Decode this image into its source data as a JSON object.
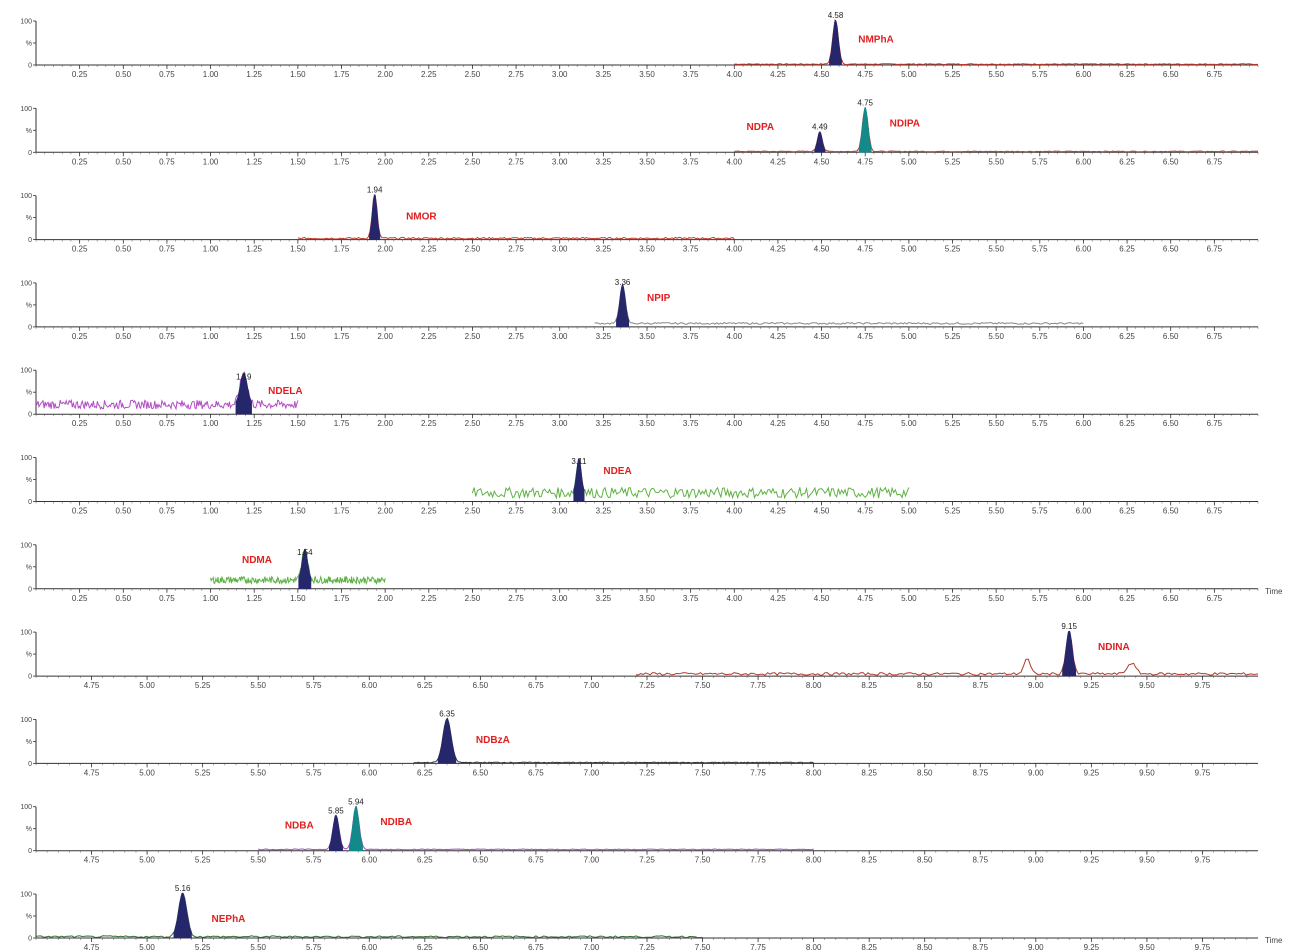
{
  "chart_data": {
    "type": "line",
    "y_ticks": [
      "100",
      "%",
      "0"
    ],
    "time_label": "Time",
    "panels": [
      {
        "xlim": [
          0,
          7.0
        ],
        "ticks": [
          "0.25",
          "0.50",
          "0.75",
          "1.00",
          "1.25",
          "1.50",
          "1.75",
          "2.00",
          "2.25",
          "2.50",
          "2.75",
          "3.00",
          "3.25",
          "3.50",
          "3.75",
          "4.00",
          "4.25",
          "4.50",
          "4.75",
          "5.00",
          "5.25",
          "5.50",
          "5.75",
          "6.00",
          "6.25",
          "6.50",
          "6.75"
        ],
        "trace_range": [
          4.0,
          7.0
        ],
        "trace_color": "#c0392b",
        "baseline": 2,
        "noise": 1,
        "show_time": false,
        "peaks": [
          {
            "rt": 4.58,
            "rt_label": "4.58",
            "height": 100,
            "width": 0.035,
            "color": "#26276b",
            "name": "NMPhA",
            "name_offset": 0.13,
            "name_height": 60
          }
        ]
      },
      {
        "xlim": [
          0,
          7.0
        ],
        "ticks": [
          "0.25",
          "0.50",
          "0.75",
          "1.00",
          "1.25",
          "1.50",
          "1.75",
          "2.00",
          "2.25",
          "2.50",
          "2.75",
          "3.00",
          "3.25",
          "3.50",
          "3.75",
          "4.00",
          "4.25",
          "4.50",
          "4.75",
          "5.00",
          "5.25",
          "5.50",
          "5.75",
          "6.00",
          "6.25",
          "6.50",
          "6.75"
        ],
        "trace_range": [
          4.0,
          7.0
        ],
        "trace_color": "#c0392b",
        "baseline": 2,
        "noise": 1,
        "show_time": false,
        "peaks": [
          {
            "rt": 4.49,
            "rt_label": "4.49",
            "height": 45,
            "width": 0.03,
            "color": "#26276b",
            "name": "NDPA",
            "name_offset": -0.42,
            "name_height": 60
          },
          {
            "rt": 4.75,
            "rt_label": "4.75",
            "height": 100,
            "width": 0.035,
            "color": "#138a8a",
            "name": "NDIPA",
            "name_offset": 0.14,
            "name_height": 68
          }
        ]
      },
      {
        "xlim": [
          0,
          7.0
        ],
        "ticks": [
          "0.25",
          "0.50",
          "0.75",
          "1.00",
          "1.25",
          "1.50",
          "1.75",
          "2.00",
          "2.25",
          "2.50",
          "2.75",
          "3.00",
          "3.25",
          "3.50",
          "3.75",
          "4.00",
          "4.25",
          "4.50",
          "4.75",
          "5.00",
          "5.25",
          "5.50",
          "5.75",
          "6.00",
          "6.25",
          "6.50",
          "6.75"
        ],
        "trace_range": [
          1.5,
          4.0
        ],
        "trace_color": "#c0392b",
        "baseline": 3,
        "noise": 2,
        "show_time": false,
        "peaks": [
          {
            "rt": 1.94,
            "rt_label": "1.94",
            "height": 100,
            "width": 0.03,
            "color": "#26276b",
            "name": "NMOR",
            "name_offset": 0.18,
            "name_height": 55
          }
        ]
      },
      {
        "xlim": [
          0,
          7.0
        ],
        "ticks": [
          "0.25",
          "0.50",
          "0.75",
          "1.00",
          "1.25",
          "1.50",
          "1.75",
          "2.00",
          "2.25",
          "2.50",
          "2.75",
          "3.00",
          "3.25",
          "3.50",
          "3.75",
          "4.00",
          "4.25",
          "4.50",
          "4.75",
          "5.00",
          "5.25",
          "5.50",
          "5.75",
          "6.00",
          "6.25",
          "6.50",
          "6.75"
        ],
        "trace_range": [
          3.2,
          6.0
        ],
        "trace_color": "#888888",
        "baseline": 8,
        "noise": 2,
        "show_time": false,
        "peaks": [
          {
            "rt": 3.36,
            "rt_label": "3.36",
            "height": 88,
            "width": 0.035,
            "color": "#26276b",
            "name": "NPIP",
            "name_offset": 0.14,
            "name_height": 68
          }
        ]
      },
      {
        "xlim": [
          0,
          7.0
        ],
        "ticks": [
          "0.25",
          "0.50",
          "0.75",
          "1.00",
          "1.25",
          "1.50",
          "1.75",
          "2.00",
          "2.25",
          "2.50",
          "2.75",
          "3.00",
          "3.25",
          "3.50",
          "3.75",
          "4.00",
          "4.25",
          "4.50",
          "4.75",
          "5.00",
          "5.25",
          "5.50",
          "5.75",
          "6.00",
          "6.25",
          "6.50",
          "6.75"
        ],
        "trace_range": [
          0.0,
          1.5
        ],
        "trace_color": "#b24ec4",
        "baseline": 22,
        "noise": 10,
        "show_time": false,
        "peaks": [
          {
            "rt": 1.19,
            "rt_label": "1.19",
            "height": 72,
            "width": 0.045,
            "color": "#26276b",
            "name": "NDELA",
            "name_offset": 0.14,
            "name_height": 55
          }
        ]
      },
      {
        "xlim": [
          0,
          7.0
        ],
        "ticks": [
          "0.25",
          "0.50",
          "0.75",
          "1.00",
          "1.25",
          "1.50",
          "1.75",
          "2.00",
          "2.25",
          "2.50",
          "2.75",
          "3.00",
          "3.25",
          "3.50",
          "3.75",
          "4.00",
          "4.25",
          "4.50",
          "4.75",
          "5.00",
          "5.25",
          "5.50",
          "5.75",
          "6.00",
          "6.25",
          "6.50",
          "6.75"
        ],
        "trace_range": [
          2.5,
          5.0
        ],
        "trace_color": "#5fb244",
        "baseline": 20,
        "noise": 12,
        "show_time": false,
        "peaks": [
          {
            "rt": 3.11,
            "rt_label": "3.11",
            "height": 78,
            "width": 0.03,
            "color": "#26276b",
            "name": "NDEA",
            "name_offset": 0.14,
            "name_height": 72
          }
        ]
      },
      {
        "xlim": [
          0,
          7.0
        ],
        "ticks": [
          "0.25",
          "0.50",
          "0.75",
          "1.00",
          "1.25",
          "1.50",
          "1.75",
          "2.00",
          "2.25",
          "2.50",
          "2.75",
          "3.00",
          "3.25",
          "3.50",
          "3.75",
          "4.00",
          "4.25",
          "4.50",
          "4.75",
          "5.00",
          "5.25",
          "5.50",
          "5.75",
          "6.00",
          "6.25",
          "6.50",
          "6.75"
        ],
        "trace_range": [
          1.0,
          2.0
        ],
        "trace_color": "#5fb244",
        "baseline": 20,
        "noise": 8,
        "show_time": true,
        "peaks": [
          {
            "rt": 1.54,
            "rt_label": "1.54",
            "height": 70,
            "width": 0.035,
            "color": "#26276b",
            "name": "NDMA",
            "name_offset": -0.36,
            "name_height": 68
          }
        ]
      },
      {
        "xlim": [
          4.5,
          10.0
        ],
        "ticks": [
          "4.75",
          "5.00",
          "5.25",
          "5.50",
          "5.75",
          "6.00",
          "6.25",
          "6.50",
          "6.75",
          "7.00",
          "7.25",
          "7.50",
          "7.75",
          "8.00",
          "8.25",
          "8.50",
          "8.75",
          "9.00",
          "9.25",
          "9.50",
          "9.75"
        ],
        "trace_range": [
          7.2,
          10.0
        ],
        "trace_color": "#b03a2e",
        "baseline": 5,
        "noise": 3,
        "show_time": false,
        "peaks": [
          {
            "rt": 8.96,
            "rt_label": "",
            "height": 35,
            "width": 0.03,
            "color": "none",
            "name": "",
            "name_offset": 0,
            "name_height": 0
          },
          {
            "rt": 9.15,
            "rt_label": "9.15",
            "height": 100,
            "width": 0.03,
            "color": "#26276b",
            "name": "NDINA",
            "name_offset": 0.13,
            "name_height": 68
          },
          {
            "rt": 9.43,
            "rt_label": "",
            "height": 25,
            "width": 0.04,
            "color": "none",
            "name": "",
            "name_offset": 0,
            "name_height": 0
          }
        ]
      },
      {
        "xlim": [
          4.5,
          10.0
        ],
        "ticks": [
          "4.75",
          "5.00",
          "5.25",
          "5.50",
          "5.75",
          "6.00",
          "6.25",
          "6.50",
          "6.75",
          "7.00",
          "7.25",
          "7.50",
          "7.75",
          "8.00",
          "8.25",
          "8.50",
          "8.75",
          "9.00",
          "9.25",
          "9.50",
          "9.75"
        ],
        "trace_range": [
          6.2,
          8.0
        ],
        "trace_color": "#333333",
        "baseline": 2,
        "noise": 1,
        "show_time": false,
        "peaks": [
          {
            "rt": 6.35,
            "rt_label": "6.35",
            "height": 100,
            "width": 0.04,
            "color": "#26276b",
            "name": "NDBzA",
            "name_offset": 0.13,
            "name_height": 55
          }
        ]
      },
      {
        "xlim": [
          4.5,
          10.0
        ],
        "ticks": [
          "4.75",
          "5.00",
          "5.25",
          "5.50",
          "5.75",
          "6.00",
          "6.25",
          "6.50",
          "6.75",
          "7.00",
          "7.25",
          "7.50",
          "7.75",
          "8.00",
          "8.25",
          "8.50",
          "8.75",
          "9.00",
          "9.25",
          "9.50",
          "9.75"
        ],
        "trace_range": [
          5.5,
          8.0
        ],
        "trace_color": "#a04fc0",
        "baseline": 3,
        "noise": 1,
        "show_time": false,
        "peaks": [
          {
            "rt": 5.85,
            "rt_label": "5.85",
            "height": 78,
            "width": 0.03,
            "color": "#26276b",
            "name": "NDBA",
            "name_offset": -0.23,
            "name_height": 60
          },
          {
            "rt": 5.94,
            "rt_label": "5.94",
            "height": 98,
            "width": 0.03,
            "color": "#138a8a",
            "name": "NDIBA",
            "name_offset": 0.11,
            "name_height": 68
          }
        ]
      },
      {
        "xlim": [
          4.5,
          10.0
        ],
        "ticks": [
          "4.75",
          "5.00",
          "5.25",
          "5.50",
          "5.75",
          "6.00",
          "6.25",
          "6.50",
          "6.75",
          "7.00",
          "7.25",
          "7.50",
          "7.75",
          "8.00",
          "8.25",
          "8.50",
          "8.75",
          "9.00",
          "9.25",
          "9.50",
          "9.75"
        ],
        "trace_range": [
          4.5,
          7.5
        ],
        "trace_color": "#3a6b3a",
        "baseline": 3,
        "noise": 2,
        "show_time": true,
        "peaks": [
          {
            "rt": 5.16,
            "rt_label": "5.16",
            "height": 100,
            "width": 0.04,
            "color": "#26276b",
            "name": "NEPhA",
            "name_offset": 0.13,
            "name_height": 45
          }
        ]
      }
    ]
  }
}
